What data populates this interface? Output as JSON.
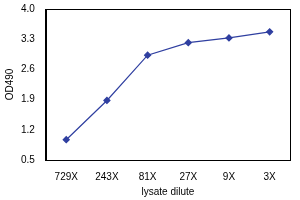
{
  "chart_data": {
    "type": "line",
    "x_label": "lysate dilute",
    "y_label": "OD490",
    "categories": [
      "729X",
      "243X",
      "81X",
      "27X",
      "9X",
      "3X"
    ],
    "values": [
      0.97,
      1.88,
      2.93,
      3.22,
      3.33,
      3.47
    ],
    "color": "#2f3fa0",
    "marker": "diamond",
    "line_style": "solid",
    "ylim": [
      0.5,
      4.0
    ],
    "yticks": [
      0.5,
      1.2,
      1.9,
      2.6,
      3.3,
      {
        "value": 4,
        "label": "4.0"
      }
    ],
    "grid": false
  }
}
